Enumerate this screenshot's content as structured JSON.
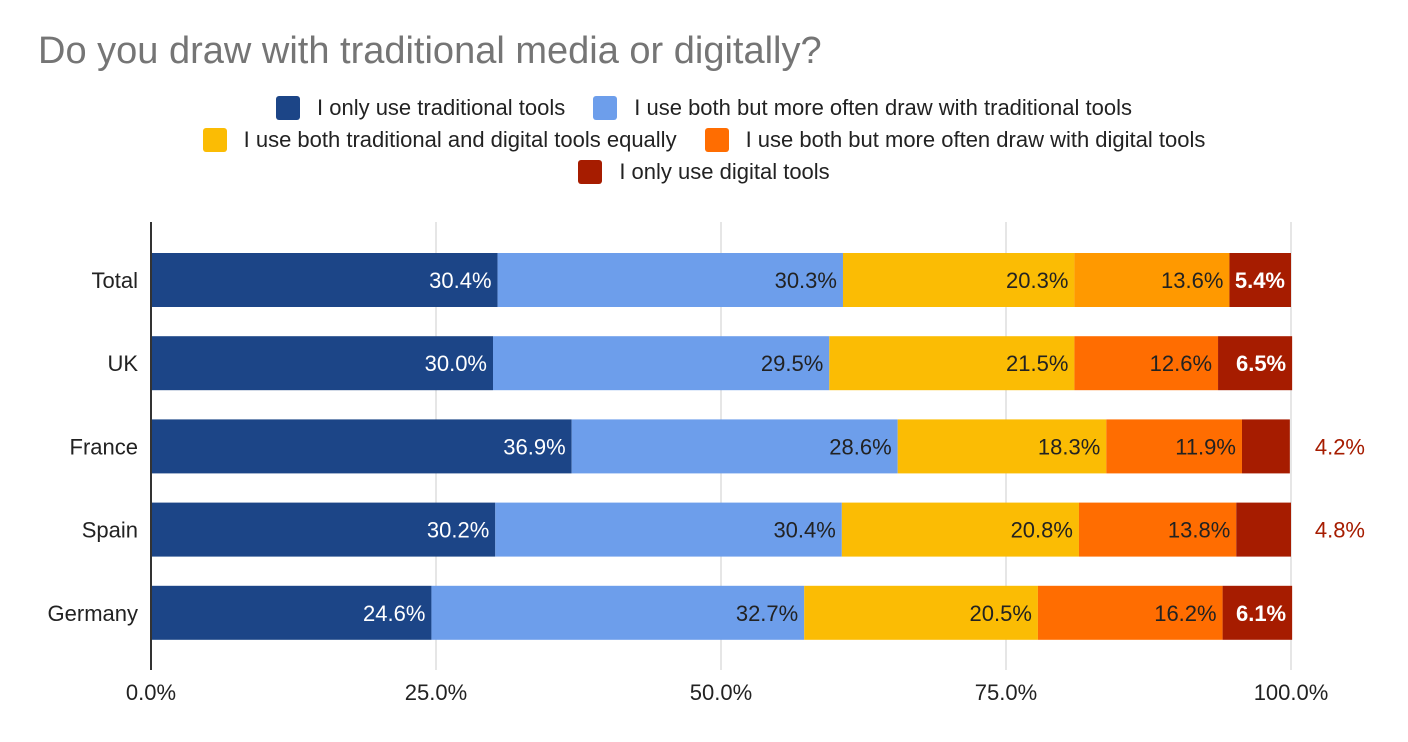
{
  "chart_data": {
    "type": "bar",
    "orientation": "horizontal",
    "stacked": true,
    "title": "Do you draw with traditional media or digitally?",
    "categories": [
      "Total",
      "UK",
      "France",
      "Spain",
      "Germany"
    ],
    "series": [
      {
        "name": "I only use traditional tools",
        "color": "#1c4587",
        "values": [
          30.4,
          30.0,
          36.9,
          30.2,
          24.6
        ],
        "labels": [
          "30.4%",
          "30.0%",
          "36.9%",
          "30.2%",
          "24.6%"
        ]
      },
      {
        "name": "I use both but more often draw with traditional tools",
        "color": "#6d9eeb",
        "values": [
          30.3,
          29.5,
          28.6,
          30.4,
          32.7
        ],
        "labels": [
          "30.3%",
          "29.5%",
          "28.6%",
          "30.4%",
          "32.7%"
        ]
      },
      {
        "name": "I use both traditional and digital tools equally",
        "color": "#fbbc04",
        "values": [
          20.3,
          21.5,
          18.3,
          20.8,
          20.5
        ],
        "labels": [
          "20.3%",
          "21.5%",
          "18.3%",
          "20.8%",
          "20.5%"
        ]
      },
      {
        "name": "I use both but more often draw with digital tools",
        "color": "#ff6d01",
        "colors_by_category": [
          "#ff9900",
          "#ff6d01",
          "#ff6d01",
          "#ff6d01",
          "#ff6d01"
        ],
        "values": [
          13.6,
          12.6,
          11.9,
          13.8,
          16.2
        ],
        "labels": [
          "13.6%",
          "12.6%",
          "11.9%",
          "13.8%",
          "16.2%"
        ]
      },
      {
        "name": "I only use digital tools",
        "color": "#a61c00",
        "values": [
          5.4,
          6.5,
          4.2,
          4.8,
          6.1
        ],
        "labels": [
          "5.4%",
          "6.5%",
          "4.2%",
          "4.8%",
          "6.1%"
        ],
        "label_outside": [
          false,
          false,
          true,
          true,
          false
        ]
      }
    ],
    "xlim": [
      0,
      100
    ],
    "x_ticks": [
      "0.0%",
      "25.0%",
      "50.0%",
      "75.0%",
      "100.0%"
    ],
    "grid": true,
    "legend_position": "top"
  }
}
